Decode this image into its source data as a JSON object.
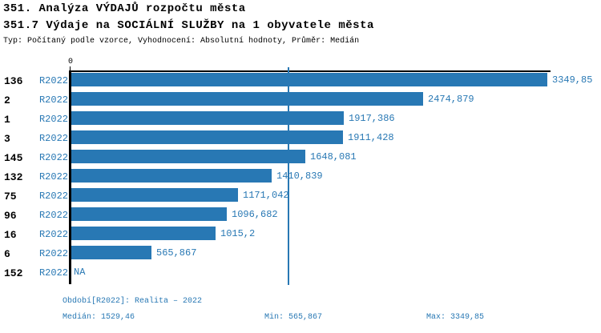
{
  "header": {
    "title1": "351. Analýza VÝDAJŮ rozpočtu města",
    "title2": "351.7 Výdaje na SOCIÁLNÍ SLUŽBY na 1 obyvatele města",
    "subtitle": "Typ: Počítaný podle vzorce, Vyhodnocení: Absolutní hodnoty, Průměr: Medián"
  },
  "chart_data": {
    "type": "bar",
    "orientation": "horizontal",
    "series_label": "R2022",
    "categories": [
      "136",
      "2",
      "1",
      "3",
      "145",
      "132",
      "75",
      "96",
      "16",
      "6",
      "152"
    ],
    "values": [
      3349.85,
      2474.879,
      1917.386,
      1911.428,
      1648.081,
      1410.839,
      1171.042,
      1096.682,
      1015.2,
      565.867,
      null
    ],
    "value_labels": [
      "3349,85",
      "2474,879",
      "1917,386",
      "1911,428",
      "1648,081",
      "1410,839",
      "1171,042",
      "1096,682",
      "1015,2",
      "565,867",
      "NA"
    ],
    "axis": {
      "zero_label": "0",
      "min": 0,
      "max": 3349.85
    },
    "median_value": 1529.46,
    "grid": false,
    "legend": "none",
    "bar_color": "#2878b4",
    "median_line_color": "#2878b4"
  },
  "footer": {
    "period": "Období[R2022]: Realita – 2022",
    "median": "Medián: 1529,46",
    "min": "Min: 565,867",
    "max": "Max: 3349,85"
  }
}
